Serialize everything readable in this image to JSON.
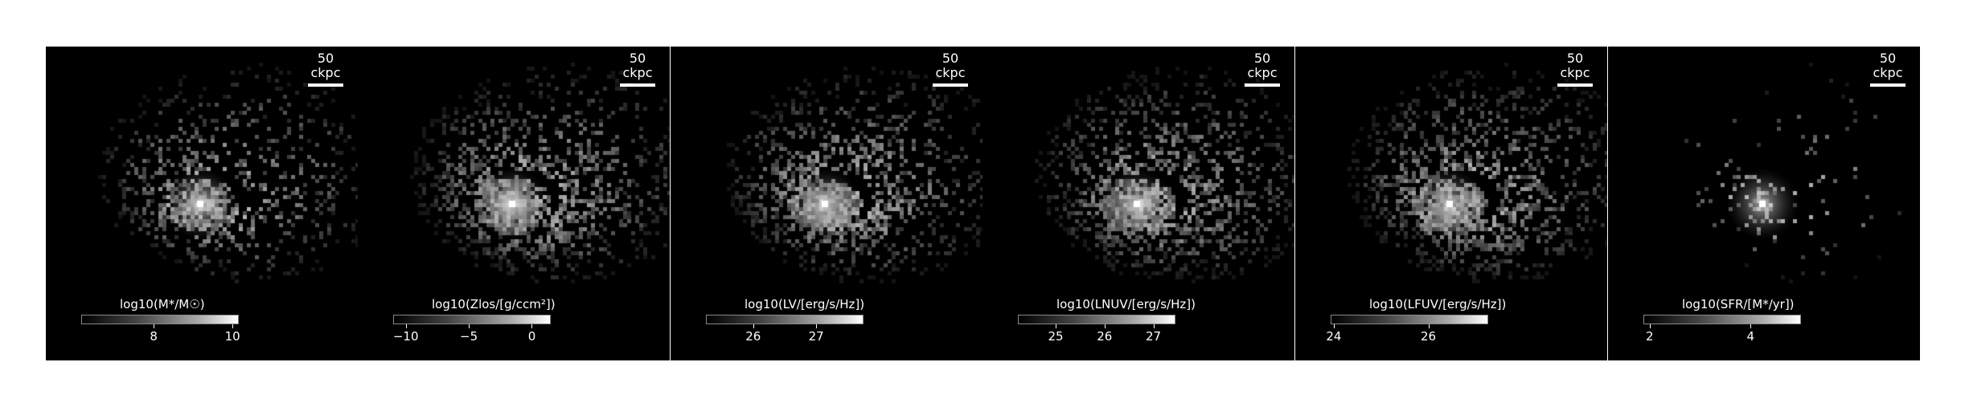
{
  "colors": {
    "panel_background": "#000000",
    "page_background": "#ffffff",
    "text": "#ffffff"
  },
  "panels": [
    {
      "scalebar": "50 ckpc",
      "colorbar_title": "log10(M*/M☉)",
      "ticks": [
        "8",
        "10"
      ],
      "tick_positions": [
        0.46,
        0.96
      ],
      "density": 0.55,
      "core": 1.0
    },
    {
      "scalebar": "50 ckpc",
      "colorbar_title": "log10(Zlos/[g/ccm²])",
      "ticks": [
        "−10",
        "−5",
        "0"
      ],
      "tick_positions": [
        0.08,
        0.48,
        0.88
      ],
      "density": 1.0,
      "core": 1.0
    },
    {
      "scalebar": "50 ckpc",
      "colorbar_title": "log10(LV/[erg/s/Hz])",
      "ticks": [
        "26",
        "27"
      ],
      "tick_positions": [
        0.3,
        0.7
      ],
      "density": 0.9,
      "core": 0.9
    },
    {
      "scalebar": "50 ckpc",
      "colorbar_title": "log10(LNUV/[erg/s/Hz])",
      "ticks": [
        "25",
        "26",
        "27"
      ],
      "tick_positions": [
        0.24,
        0.55,
        0.86
      ],
      "density": 0.95,
      "core": 0.85
    },
    {
      "scalebar": "50 ckpc",
      "colorbar_title": "log10(LFUV/[erg/s/Hz])",
      "ticks": [
        "24",
        "26"
      ],
      "tick_positions": [
        0.02,
        0.62
      ],
      "density": 0.95,
      "core": 0.85
    },
    {
      "scalebar": "50 ckpc",
      "colorbar_title": "log10(SFR/[M*/yr])",
      "ticks": [
        "2",
        "4"
      ],
      "tick_positions": [
        0.04,
        0.68
      ],
      "density": 0.08,
      "core": 0.9
    }
  ]
}
